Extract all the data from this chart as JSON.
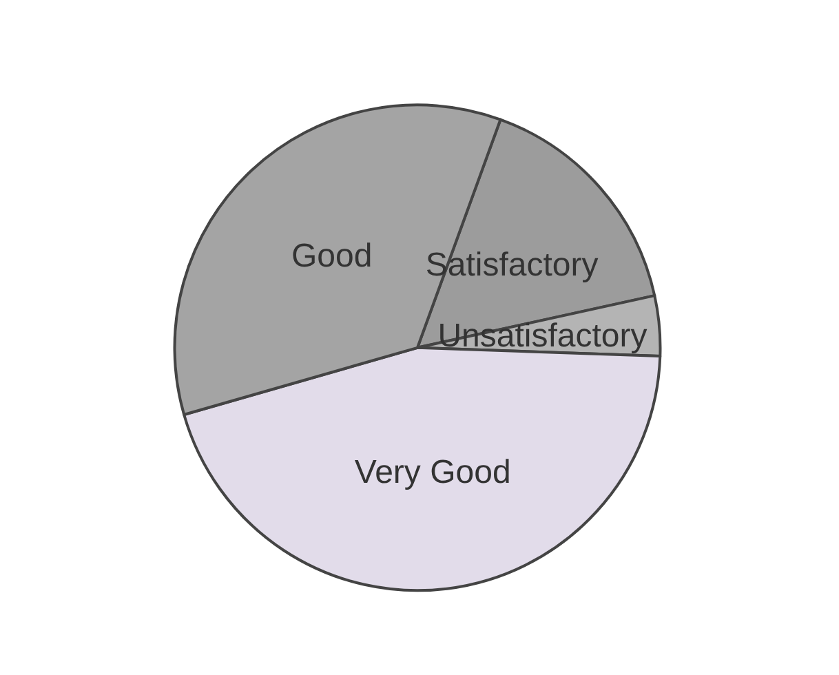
{
  "chart_data": {
    "type": "pie",
    "categories": [
      "Satisfactory",
      "Unsatisfactory",
      "Very Good",
      "Good"
    ],
    "values": [
      16,
      4,
      45,
      35
    ],
    "colors": [
      "#9c9c9c",
      "#b4b4b4",
      "#e2dcea",
      "#a4a4a4"
    ],
    "legend": false
  }
}
